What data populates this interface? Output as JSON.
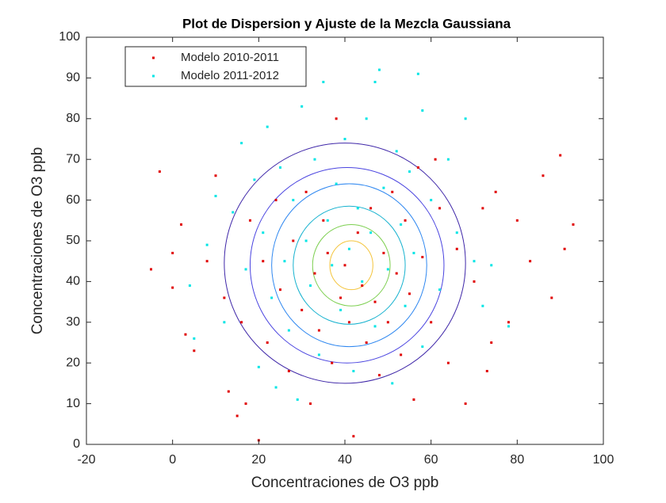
{
  "chart_data": {
    "type": "scatter",
    "title": "Plot de Dispersion y Ajuste de la Mezcla Gaussiana",
    "x_label": "Concentraciones de O3 ppb",
    "y_label": "Concentraciones de O3 ppb",
    "xlim": [
      -20,
      100
    ],
    "xticks": [
      -20,
      0,
      20,
      40,
      60,
      80,
      100
    ],
    "ylim": [
      0,
      100
    ],
    "yticks": [
      0,
      10,
      20,
      30,
      40,
      50,
      60,
      70,
      80,
      90,
      100
    ],
    "legend": "top-left",
    "series": [
      {
        "name": "Modelo 2010-2011",
        "color": "#e00000",
        "x": [
          -5,
          -3,
          0,
          0,
          2,
          3,
          5,
          8,
          10,
          12,
          13,
          15,
          16,
          17,
          18,
          20,
          21,
          22,
          24,
          25,
          27,
          28,
          30,
          31,
          32,
          33,
          34,
          35,
          36,
          37,
          38,
          39,
          40,
          41,
          42,
          43,
          44,
          45,
          46,
          47,
          48,
          49,
          50,
          51,
          52,
          53,
          54,
          55,
          56,
          57,
          58,
          60,
          62,
          64,
          66,
          68,
          70,
          72,
          74,
          75,
          78,
          80,
          83,
          86,
          88,
          90,
          91,
          93,
          73,
          61
        ],
        "values": [
          43,
          67,
          47,
          38.5,
          54,
          27,
          23,
          45,
          66,
          36,
          13,
          7,
          30,
          10,
          55,
          1,
          45,
          25,
          60,
          38,
          18,
          50,
          33,
          62,
          10,
          42,
          28,
          55,
          47,
          20,
          80,
          36,
          44,
          30,
          2,
          52,
          39,
          25,
          58,
          35,
          17,
          47,
          30,
          62,
          42,
          22,
          55,
          37,
          11,
          68,
          46,
          30,
          58,
          20,
          48,
          10,
          40,
          58,
          25,
          62,
          30,
          55,
          45,
          66,
          36,
          71,
          48,
          54,
          18,
          70
        ]
      },
      {
        "name": "Modelo 2011-2012",
        "color": "#00e5e5",
        "x": [
          4,
          5,
          8,
          10,
          12,
          14,
          16,
          17,
          19,
          20,
          21,
          22,
          23,
          24,
          25,
          26,
          27,
          28,
          29,
          30,
          31,
          32,
          33,
          34,
          35,
          36,
          37,
          38,
          39,
          40,
          41,
          42,
          43,
          44,
          45,
          46,
          47,
          48,
          49,
          50,
          51,
          52,
          53,
          54,
          55,
          56,
          57,
          58,
          60,
          62,
          64,
          66,
          68,
          70,
          72,
          74,
          78,
          58,
          47
        ],
        "values": [
          39,
          26,
          49,
          61,
          30,
          57,
          74,
          43,
          65,
          19,
          52,
          78,
          36,
          14,
          68,
          45,
          28,
          60,
          11,
          83,
          50,
          39,
          70,
          22,
          89,
          55,
          44,
          64,
          33,
          75,
          48,
          18,
          58,
          40,
          80,
          52,
          29,
          92,
          63,
          43,
          15,
          72,
          54,
          34,
          67,
          47,
          91,
          24,
          60,
          38,
          70,
          52,
          80,
          45,
          34,
          44,
          29,
          82,
          89
        ]
      }
    ],
    "contours": [
      {
        "cx": 40,
        "cy": 44.5,
        "rx": 28,
        "ry": 29.5,
        "color": "#3e26a8"
      },
      {
        "cx": 40.5,
        "cy": 44,
        "rx": 22.5,
        "ry": 24,
        "color": "#4a44e0"
      },
      {
        "cx": 41,
        "cy": 44,
        "rx": 18,
        "ry": 20,
        "color": "#2e87f0"
      },
      {
        "cx": 41,
        "cy": 44,
        "rx": 13,
        "ry": 14.5,
        "color": "#17b2cf"
      },
      {
        "cx": 41.5,
        "cy": 44,
        "rx": 9,
        "ry": 10,
        "color": "#7ccf4f"
      },
      {
        "cx": 41.5,
        "cy": 44,
        "rx": 5,
        "ry": 6,
        "color": "#f4c43a"
      }
    ]
  }
}
